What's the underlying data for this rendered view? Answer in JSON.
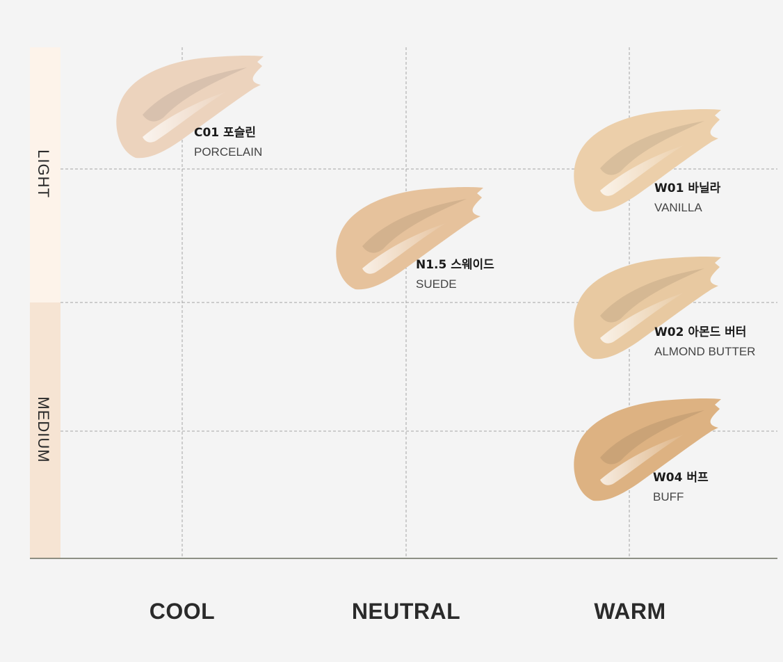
{
  "chart_data": {
    "type": "scatter",
    "x_categories": [
      "COOL",
      "NEUTRAL",
      "WARM"
    ],
    "depth_bands": [
      {
        "label": "LIGHT",
        "color": "#fdf3ea"
      },
      {
        "label": "MEDIUM",
        "color": "#f6e4d3"
      }
    ],
    "shades": [
      {
        "code": "C01 포슬린",
        "name": "PORCELAIN",
        "tone": "COOL",
        "depth": "LIGHT",
        "color": "#ecd3bd"
      },
      {
        "code": "N1.5 스웨이드",
        "name": "SUEDE",
        "tone": "NEUTRAL",
        "depth": "LIGHT",
        "color": "#e6c29c"
      },
      {
        "code": "W01 바닐라",
        "name": "VANILLA",
        "tone": "WARM",
        "depth": "LIGHT",
        "color": "#eccfaa"
      },
      {
        "code": "W02 아몬드 버터",
        "name": "ALMOND BUTTER",
        "tone": "WARM",
        "depth": "MEDIUM",
        "color": "#e8c9a1"
      },
      {
        "code": "W04 버프",
        "name": "BUFF",
        "tone": "WARM",
        "depth": "MEDIUM",
        "color": "#ddb282"
      }
    ],
    "grid": "dashed"
  },
  "colors": {
    "background": "#f4f4f4",
    "grid_line": "#9a9a9a",
    "axis_line": "#6b6e60"
  }
}
